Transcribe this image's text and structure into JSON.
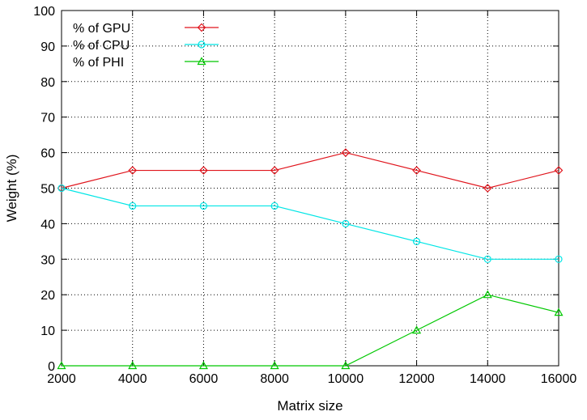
{
  "chart_data": {
    "type": "line",
    "title": "",
    "xlabel": "Matrix size",
    "ylabel": "Weight (%)",
    "x": [
      2000,
      4000,
      6000,
      8000,
      10000,
      12000,
      14000,
      16000
    ],
    "xlim": [
      2000,
      16000
    ],
    "ylim": [
      0,
      100
    ],
    "x_ticks": [
      "2000",
      "4000",
      "6000",
      "8000",
      "10000",
      "12000",
      "14000",
      "16000"
    ],
    "y_ticks": [
      "0",
      "10",
      "20",
      "30",
      "40",
      "50",
      "60",
      "70",
      "80",
      "90",
      "100"
    ],
    "grid": true,
    "legend_position": "top-left",
    "series": [
      {
        "name": "% of GPU",
        "color": "#e0141c",
        "marker": "diamond",
        "values": [
          50,
          55,
          55,
          55,
          60,
          55,
          50,
          55
        ]
      },
      {
        "name": "% of CPU",
        "color": "#00e5e5",
        "marker": "circle",
        "values": [
          50,
          45,
          45,
          45,
          40,
          35,
          30,
          30
        ]
      },
      {
        "name": "% of PHI",
        "color": "#00c800",
        "marker": "triangle",
        "values": [
          0,
          0,
          0,
          0,
          0,
          10,
          20,
          15
        ]
      }
    ]
  }
}
